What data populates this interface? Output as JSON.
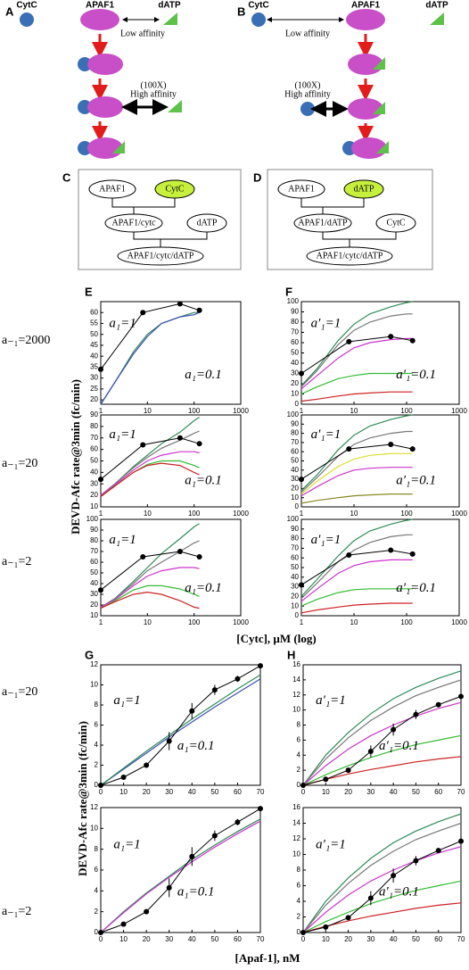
{
  "diagram_A": {
    "label": "A",
    "cytc": "CytC",
    "apaf1": "APAF1",
    "datp": "dATP",
    "low": "Low affinity",
    "fold": "(100X)",
    "high": "High affinity"
  },
  "diagram_B": {
    "label": "B",
    "cytc": "CytC",
    "apaf1": "APAF1",
    "datp": "dATP",
    "low": "Low affinity",
    "fold": "(100X)",
    "high": "High affinity"
  },
  "diagram_C": {
    "label": "C",
    "nodes": [
      "APAF1",
      "CytC",
      "APAF1/cytc",
      "dATP",
      "APAF1/cytc/dATP"
    ]
  },
  "diagram_D": {
    "label": "D",
    "nodes": [
      "APAF1",
      "dATP",
      "APAF1/dATP",
      "CytC",
      "APAF1/cytc/dATP"
    ]
  },
  "row_labels": [
    "a₋₁=2000",
    "a₋₁=20",
    "a₋₁=2",
    "a₋₁=20",
    "a₋₁=2"
  ],
  "axis_labels": {
    "rate_cytc": "DEVD-Afc rate@3min (fc/min)",
    "cytc": "[Cytc], µM (log)",
    "rate_apaf": "DEVD-Afc rate@3min (fc/min)",
    "apaf": "[Apaf-1], nM"
  },
  "chart_data": [
    {
      "type": "line",
      "label": "E",
      "log_x": true,
      "x": [
        1,
        2,
        5,
        10,
        20,
        50,
        100,
        130
      ],
      "xlim": [
        1,
        1000
      ],
      "xticks": [
        1,
        10,
        100,
        1000
      ],
      "ylim": [
        18,
        65
      ],
      "yticks": [
        20,
        25,
        30,
        35,
        40,
        45,
        50,
        55,
        60
      ],
      "annotations": [
        "a₁=1",
        "a₁=0.1"
      ],
      "series": [
        {
          "color": "#2e8b57",
          "values": [
            18,
            28,
            42,
            50,
            55,
            58,
            60,
            60
          ]
        },
        {
          "color": "#3b4fb0",
          "values": [
            18,
            28,
            41,
            49,
            55,
            58,
            59,
            60
          ]
        },
        {
          "color": "#000000",
          "markers": true,
          "x": [
            1,
            8,
            50,
            130
          ],
          "values": [
            34,
            60,
            64,
            61
          ]
        }
      ]
    },
    {
      "type": "line",
      "log_x": true,
      "x": [
        1,
        2,
        5,
        10,
        20,
        50,
        100,
        130
      ],
      "xlim": [
        1,
        1000
      ],
      "xticks": [
        1,
        10,
        100,
        1000
      ],
      "ylim": [
        10,
        90
      ],
      "yticks": [
        10,
        20,
        30,
        40,
        50,
        60,
        70,
        80,
        90
      ],
      "annotations": [
        "a₁=1",
        "a₁=0.1"
      ],
      "series": [
        {
          "color": "#2e8b57",
          "values": [
            20,
            30,
            45,
            55,
            65,
            75,
            85,
            88
          ]
        },
        {
          "color": "#777777",
          "values": [
            20,
            30,
            44,
            53,
            61,
            68,
            74,
            76
          ]
        },
        {
          "color": "#cc33cc",
          "values": [
            20,
            29,
            42,
            50,
            55,
            58,
            58,
            57
          ]
        },
        {
          "color": "#33bb33",
          "values": [
            19,
            28,
            40,
            47,
            50,
            50,
            46,
            44
          ]
        },
        {
          "color": "#cc2222",
          "values": [
            19,
            28,
            40,
            46,
            48,
            46,
            40,
            38
          ]
        },
        {
          "color": "#000000",
          "markers": true,
          "x": [
            1,
            8,
            50,
            130
          ],
          "values": [
            34,
            64,
            70,
            65
          ]
        }
      ]
    },
    {
      "type": "line",
      "log_x": true,
      "x": [
        1,
        2,
        5,
        10,
        20,
        50,
        100,
        130
      ],
      "xlim": [
        1,
        1000
      ],
      "xticks": [
        1,
        10,
        100,
        1000
      ],
      "ylim": [
        10,
        100
      ],
      "yticks": [
        10,
        20,
        30,
        40,
        50,
        60,
        70,
        80,
        90,
        100
      ],
      "annotations": [
        "a₁=1",
        "a₁=0.1"
      ],
      "series": [
        {
          "color": "#2e8b57",
          "values": [
            18,
            26,
            42,
            55,
            68,
            82,
            93,
            96
          ]
        },
        {
          "color": "#777777",
          "values": [
            18,
            26,
            40,
            52,
            60,
            70,
            78,
            80
          ]
        },
        {
          "color": "#cc33cc",
          "values": [
            18,
            25,
            38,
            47,
            52,
            55,
            55,
            54
          ]
        },
        {
          "color": "#33bb33",
          "values": [
            17,
            24,
            34,
            38,
            38,
            35,
            30,
            28
          ]
        },
        {
          "color": "#cc2222",
          "values": [
            17,
            23,
            30,
            32,
            30,
            24,
            18,
            17
          ]
        },
        {
          "color": "#000000",
          "markers": true,
          "x": [
            1,
            8,
            50,
            130
          ],
          "values": [
            34,
            65,
            70,
            65
          ]
        }
      ]
    },
    {
      "type": "line",
      "label": "F",
      "log_x": true,
      "x": [
        1,
        2,
        5,
        10,
        20,
        50,
        100,
        130
      ],
      "xlim": [
        1,
        1000
      ],
      "xticks": [
        1,
        10,
        100,
        1000
      ],
      "ylim": [
        0,
        100
      ],
      "yticks": [
        0,
        10,
        20,
        30,
        40,
        50,
        60,
        70,
        80,
        90,
        100
      ],
      "annotations": [
        "a′₁=1",
        "a′₁=0.1"
      ],
      "series": [
        {
          "color": "#2e8b57",
          "values": [
            18,
            35,
            62,
            78,
            88,
            95,
            99,
            100
          ]
        },
        {
          "color": "#777777",
          "values": [
            17,
            33,
            58,
            72,
            80,
            86,
            88,
            88
          ]
        },
        {
          "color": "#cc33cc",
          "values": [
            15,
            28,
            45,
            55,
            60,
            63,
            64,
            64
          ]
        },
        {
          "color": "#33bb33",
          "values": [
            10,
            17,
            25,
            28,
            30,
            30,
            30,
            30
          ]
        },
        {
          "color": "#cc2222",
          "values": [
            3,
            5,
            8,
            10,
            11,
            12,
            12,
            12
          ]
        },
        {
          "color": "#000000",
          "markers": true,
          "x": [
            1,
            8,
            50,
            130
          ],
          "values": [
            30,
            61,
            66,
            62
          ]
        }
      ]
    },
    {
      "type": "line",
      "log_x": true,
      "x": [
        1,
        2,
        5,
        10,
        20,
        50,
        100,
        130
      ],
      "xlim": [
        1,
        1000
      ],
      "xticks": [
        1,
        10,
        100,
        1000
      ],
      "ylim": [
        0,
        100
      ],
      "yticks": [
        0,
        10,
        20,
        30,
        40,
        50,
        60,
        70,
        80,
        90,
        100
      ],
      "annotations": [
        "a′₁=1",
        "a′₁=0.1"
      ],
      "series": [
        {
          "color": "#2e8b57",
          "values": [
            18,
            35,
            62,
            78,
            88,
            95,
            99,
            100
          ]
        },
        {
          "color": "#777777",
          "values": [
            16,
            32,
            55,
            68,
            75,
            80,
            82,
            82
          ]
        },
        {
          "color": "#dddd33",
          "values": [
            14,
            28,
            44,
            52,
            56,
            58,
            58,
            58
          ]
        },
        {
          "color": "#cc33cc",
          "values": [
            12,
            22,
            34,
            40,
            42,
            43,
            43,
            43
          ]
        },
        {
          "color": "#888822",
          "values": [
            4,
            7,
            10,
            12,
            13,
            14,
            14,
            14
          ]
        },
        {
          "color": "#000000",
          "markers": true,
          "x": [
            1,
            8,
            50,
            130
          ],
          "values": [
            30,
            63,
            68,
            63
          ]
        }
      ]
    },
    {
      "type": "line",
      "log_x": true,
      "x": [
        1,
        2,
        5,
        10,
        20,
        50,
        100,
        130
      ],
      "xlim": [
        1,
        1000
      ],
      "xticks": [
        1,
        10,
        100,
        1000
      ],
      "ylim": [
        0,
        100
      ],
      "yticks": [
        0,
        10,
        20,
        30,
        40,
        50,
        60,
        70,
        80,
        90,
        100
      ],
      "annotations": [
        "a′₁=1",
        "a′₁=0.1"
      ],
      "series": [
        {
          "color": "#2e8b57",
          "values": [
            20,
            38,
            62,
            78,
            88,
            95,
            99,
            100
          ]
        },
        {
          "color": "#777777",
          "values": [
            18,
            34,
            56,
            68,
            76,
            82,
            84,
            84
          ]
        },
        {
          "color": "#cc33cc",
          "values": [
            15,
            28,
            44,
            52,
            56,
            58,
            58,
            58
          ]
        },
        {
          "color": "#33bb33",
          "values": [
            10,
            17,
            24,
            27,
            28,
            28,
            28,
            28
          ]
        },
        {
          "color": "#cc2222",
          "values": [
            3,
            6,
            9,
            11,
            12,
            13,
            13,
            13
          ]
        },
        {
          "color": "#000000",
          "markers": true,
          "x": [
            1,
            8,
            50,
            130
          ],
          "values": [
            32,
            63,
            68,
            64
          ]
        }
      ]
    },
    {
      "type": "line",
      "label": "G",
      "x": [
        0,
        10,
        20,
        30,
        40,
        50,
        60,
        70
      ],
      "xlim": [
        0,
        70
      ],
      "xticks": [
        0,
        10,
        20,
        30,
        40,
        50,
        60,
        70
      ],
      "ylim": [
        0,
        12
      ],
      "yticks": [
        0,
        2,
        4,
        6,
        8,
        10,
        12
      ],
      "annotations": [
        "a₁=1",
        "a₁=0.1"
      ],
      "series": [
        {
          "color": "#3b4fb0",
          "values": [
            0,
            1.6,
            3.2,
            4.8,
            6.3,
            7.8,
            9.2,
            10.6
          ]
        },
        {
          "color": "#2e8b57",
          "values": [
            0,
            1.7,
            3.4,
            5,
            6.6,
            8.1,
            9.6,
            11
          ]
        },
        {
          "color": "#000000",
          "markers": true,
          "values": [
            0,
            0.8,
            2,
            4.4,
            7.4,
            9.5,
            10.6,
            11.9
          ],
          "errors": [
            0,
            0,
            0,
            0.9,
            0.8,
            0.5,
            0.3,
            0.2
          ]
        }
      ]
    },
    {
      "type": "line",
      "x": [
        0,
        10,
        20,
        30,
        40,
        50,
        60,
        70
      ],
      "xlim": [
        0,
        70
      ],
      "xticks": [
        0,
        10,
        20,
        30,
        40,
        50,
        60,
        70
      ],
      "ylim": [
        0,
        12
      ],
      "yticks": [
        0,
        2,
        4,
        6,
        8,
        10,
        12
      ],
      "annotations": [
        "a₁=1",
        "a₁=0.1"
      ],
      "series": [
        {
          "color": "#2e8b57",
          "values": [
            0,
            2,
            3.8,
            5.4,
            7,
            8.4,
            9.7,
            10.9
          ]
        },
        {
          "color": "#cc33cc",
          "values": [
            0,
            1.9,
            3.7,
            5.3,
            6.8,
            8.2,
            9.5,
            10.7
          ]
        },
        {
          "color": "#000000",
          "markers": true,
          "values": [
            0,
            0.8,
            2,
            4.3,
            7.3,
            9.3,
            10.6,
            11.9
          ],
          "errors": [
            0,
            0,
            0,
            0.9,
            0.9,
            0.5,
            0.3,
            0.2
          ]
        }
      ]
    },
    {
      "type": "line",
      "label": "H",
      "x": [
        0,
        10,
        20,
        30,
        40,
        50,
        60,
        70
      ],
      "xlim": [
        0,
        70
      ],
      "xticks": [
        0,
        10,
        20,
        30,
        40,
        50,
        60,
        70
      ],
      "ylim": [
        0,
        16
      ],
      "yticks": [
        0,
        2,
        4,
        6,
        8,
        10,
        12,
        14,
        16
      ],
      "annotations": [
        "a′₁=1",
        "a′₁=0.1"
      ],
      "series": [
        {
          "color": "#2e8b57",
          "values": [
            0,
            4,
            7,
            9.5,
            11.5,
            13,
            14.2,
            15.2
          ]
        },
        {
          "color": "#777777",
          "values": [
            0,
            3.5,
            6.3,
            8.6,
            10.4,
            11.9,
            13,
            14
          ]
        },
        {
          "color": "#cc33cc",
          "values": [
            0,
            2.6,
            4.8,
            6.6,
            8,
            9.2,
            10.2,
            11
          ]
        },
        {
          "color": "#33bb33",
          "values": [
            0,
            1.4,
            2.6,
            3.7,
            4.6,
            5.4,
            6,
            6.6
          ]
        },
        {
          "color": "#cc2222",
          "values": [
            0,
            0.8,
            1.5,
            2.1,
            2.6,
            3.1,
            3.5,
            3.8
          ]
        },
        {
          "color": "#000000",
          "markers": true,
          "values": [
            0,
            0.8,
            2,
            4.5,
            7.4,
            9.4,
            10.7,
            11.8
          ],
          "errors": [
            0,
            0,
            0,
            0.8,
            0.8,
            0.6,
            0.3,
            0.2
          ]
        }
      ]
    },
    {
      "type": "line",
      "x": [
        0,
        10,
        20,
        30,
        40,
        50,
        60,
        70
      ],
      "xlim": [
        0,
        70
      ],
      "xticks": [
        0,
        10,
        20,
        30,
        40,
        50,
        60,
        70
      ],
      "ylim": [
        0,
        16
      ],
      "yticks": [
        0,
        2,
        4,
        6,
        8,
        10,
        12,
        14,
        16
      ],
      "annotations": [
        "a′₁=1",
        "a′₁=0.1"
      ],
      "series": [
        {
          "color": "#2e8b57",
          "values": [
            0,
            4,
            7,
            9.5,
            11.5,
            13,
            14.2,
            15.2
          ]
        },
        {
          "color": "#777777",
          "values": [
            0,
            3.5,
            6.3,
            8.6,
            10.4,
            11.9,
            13,
            14
          ]
        },
        {
          "color": "#cc33cc",
          "values": [
            0,
            2.6,
            4.8,
            6.6,
            8,
            9.2,
            10.2,
            11
          ]
        },
        {
          "color": "#33bb33",
          "values": [
            0,
            1.4,
            2.6,
            3.7,
            4.6,
            5.4,
            6,
            6.6
          ]
        },
        {
          "color": "#cc2222",
          "values": [
            0,
            0.8,
            1.5,
            2.1,
            2.6,
            3.1,
            3.5,
            3.8
          ]
        },
        {
          "color": "#000000",
          "markers": true,
          "values": [
            0,
            0.7,
            1.9,
            4.4,
            7.3,
            9.2,
            10.5,
            11.7
          ],
          "errors": [
            0,
            0,
            0,
            0.9,
            0.9,
            0.6,
            0.3,
            0.2
          ]
        }
      ]
    }
  ]
}
